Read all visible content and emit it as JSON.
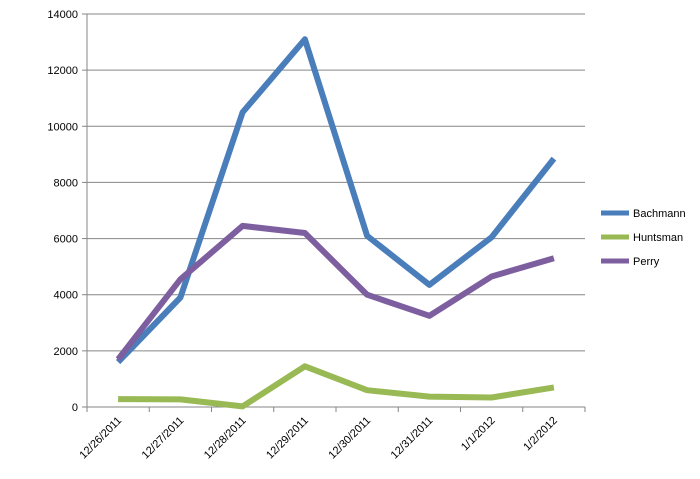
{
  "chart_data": {
    "type": "line",
    "categories": [
      "12/26/2011",
      "12/27/2011",
      "12/28/2011",
      "12/29/2011",
      "12/30/2011",
      "12/31/2011",
      "1/1/2012",
      "1/2/2012"
    ],
    "series": [
      {
        "name": "Bachmann",
        "color": "#4a7ebb",
        "values": [
          1600,
          3900,
          10500,
          13100,
          6100,
          4350,
          6050,
          8850
        ]
      },
      {
        "name": "Huntsman",
        "color": "#98b954",
        "values": [
          280,
          270,
          20,
          1450,
          600,
          370,
          340,
          700
        ]
      },
      {
        "name": "Perry",
        "color": "#7d5fa0",
        "values": [
          1700,
          4550,
          6450,
          6200,
          4000,
          3250,
          4650,
          5300
        ]
      }
    ],
    "ylim": [
      0,
      14000
    ],
    "yticks": [
      "0",
      "2000",
      "4000",
      "6000",
      "8000",
      "10000",
      "12000",
      "14000"
    ],
    "grid": true,
    "legend": "right"
  }
}
